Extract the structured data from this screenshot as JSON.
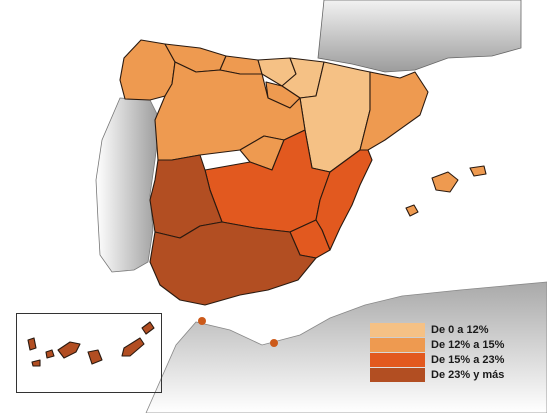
{
  "legend": {
    "items": [
      {
        "label": "De 0 a 12%",
        "color": "#f5c185"
      },
      {
        "label": "De 12% a 15%",
        "color": "#ee9a50"
      },
      {
        "label": "De 15% a 23%",
        "color": "#e2591f"
      },
      {
        "label": "De 23% y más",
        "color": "#b24e22"
      }
    ]
  },
  "colors": {
    "land_gray": "#c8c8c8",
    "dark_gray": "#8a8a8a",
    "city_dot": "#cc5a1a"
  }
}
